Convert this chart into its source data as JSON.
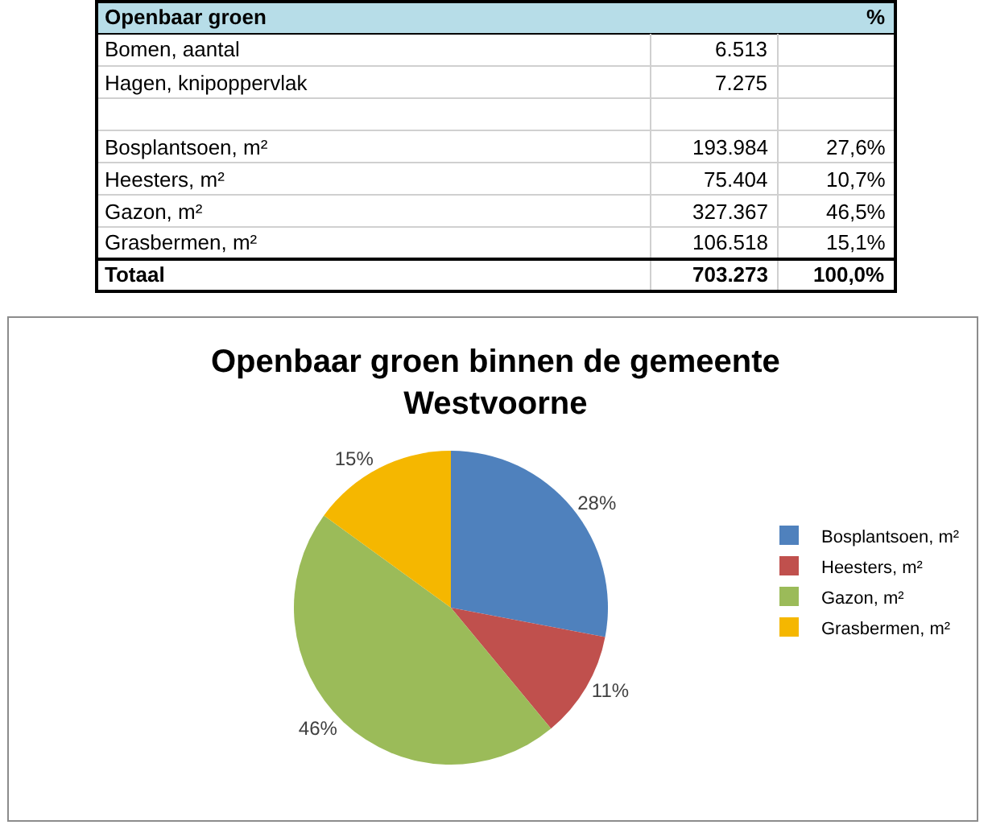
{
  "chart_data": [
    {
      "type": "other",
      "title": "Openbaar groen",
      "categories": [
        "Bomen, aantal",
        "Hagen, knipoppervlak",
        null,
        "Bosplantsoen, m²",
        "Heesters, m²",
        "Gazon, m²",
        "Grasbermen, m²",
        "Totaal"
      ],
      "series": [
        {
          "values": [
            6513,
            7275,
            null,
            193984,
            75404,
            327367,
            106518,
            703273
          ],
          "value_labels": [
            "6.513",
            "7.275",
            null,
            "193.984",
            "75.404",
            "327.367",
            "106.518",
            "703.273"
          ]
        },
        {
          "name": "%",
          "values": [
            null,
            null,
            null,
            27.6,
            10.7,
            46.5,
            15.1,
            100.0
          ],
          "value_labels": [
            null,
            null,
            null,
            "27,6%",
            "10,7%",
            "46,5%",
            "15,1%",
            "100,0%"
          ]
        }
      ]
    },
    {
      "type": "pie",
      "title": "Openbaar groen binnen de gemeente Westvoorne",
      "categories": [
        "Bosplantsoen, m²",
        "Heesters, m²",
        "Gazon, m²",
        "Grasbermen, m²"
      ],
      "values": [
        28,
        11,
        46,
        15
      ],
      "value_labels": [
        "28%",
        "11%",
        "46%",
        "15%"
      ],
      "colors": [
        "#4f81bd",
        "#c0504d",
        "#9bbb59",
        "#f5b700"
      ],
      "legend": "right"
    }
  ]
}
